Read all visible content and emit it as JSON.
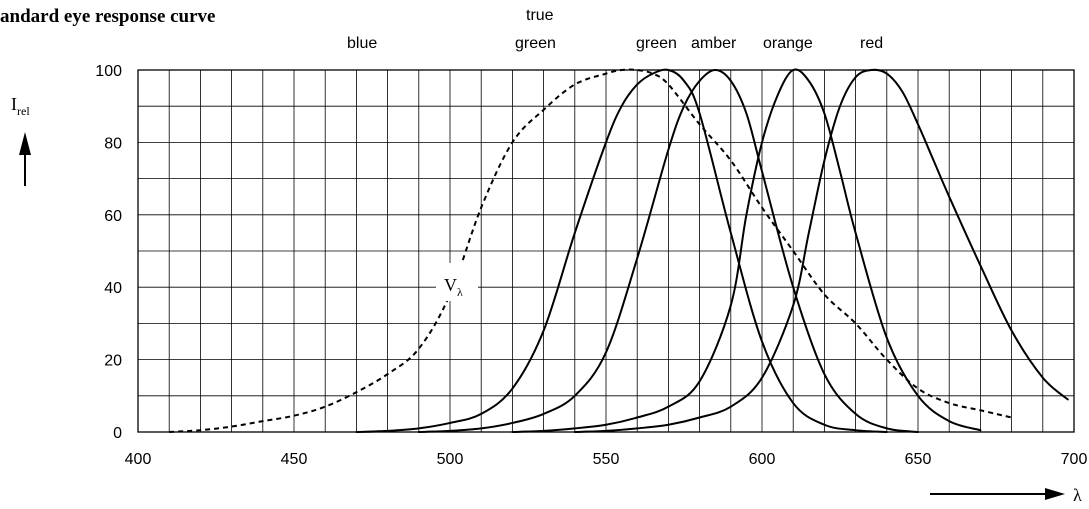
{
  "chart_data": {
    "type": "line",
    "title": "andard eye response curve",
    "ylabel_symbol": "I",
    "ylabel_subscript": "rel",
    "xlabel_symbol": "λ",
    "xlim": [
      400,
      700
    ],
    "ylim": [
      0,
      100
    ],
    "x_ticks": [
      400,
      450,
      500,
      550,
      600,
      650,
      700
    ],
    "y_ticks": [
      0,
      20,
      40,
      60,
      80,
      100
    ],
    "x_minor_step": 10,
    "y_minor_step": 10,
    "grid": true,
    "vlambda_label_symbol": "V",
    "vlambda_label_subscript": "λ",
    "series_labels": [
      "blue",
      "true",
      "green",
      "green",
      "amber",
      "orange",
      "red"
    ],
    "series": [
      {
        "style": "solid",
        "x": [
          470,
          480,
          490,
          500,
          510,
          520,
          530,
          540,
          550,
          555,
          560,
          565,
          570,
          575,
          580,
          590,
          600,
          610,
          620,
          630,
          640
        ],
        "y": [
          0,
          0.3,
          1,
          2.5,
          5,
          12,
          28,
          55,
          80,
          90,
          96,
          99,
          100,
          97,
          88,
          55,
          25,
          8,
          2,
          0.5,
          0
        ]
      },
      {
        "style": "solid",
        "x": [
          490,
          500,
          510,
          520,
          530,
          540,
          550,
          560,
          570,
          575,
          580,
          585,
          590,
          595,
          600,
          610,
          620,
          630,
          640,
          650
        ],
        "y": [
          0,
          0.3,
          1,
          2.5,
          5,
          10,
          22,
          48,
          78,
          90,
          97,
          100,
          97,
          88,
          72,
          40,
          16,
          5,
          1,
          0
        ]
      },
      {
        "style": "solid",
        "x": [
          520,
          530,
          540,
          550,
          560,
          570,
          580,
          590,
          595,
          600,
          605,
          610,
          615,
          620,
          625,
          630,
          640,
          650,
          660,
          670
        ],
        "y": [
          0,
          0.3,
          1,
          2,
          4,
          7,
          14,
          35,
          60,
          80,
          93,
          100,
          97,
          88,
          72,
          55,
          26,
          10,
          3,
          0.5
        ]
      },
      {
        "style": "solid",
        "x": [
          540,
          550,
          560,
          570,
          580,
          590,
          600,
          610,
          615,
          620,
          625,
          630,
          635,
          640,
          645,
          650,
          655,
          660,
          670,
          680,
          690,
          698
        ],
        "y": [
          0,
          0.3,
          1,
          2,
          4,
          7,
          15,
          35,
          55,
          75,
          90,
          98,
          100,
          99,
          94,
          85,
          75,
          65,
          46,
          28,
          15,
          9
        ]
      },
      {
        "style": "dotted",
        "x": [
          410,
          420,
          430,
          440,
          450,
          460,
          470,
          480,
          490,
          500,
          510,
          520,
          530,
          540,
          550,
          555,
          560,
          565,
          570,
          580,
          590,
          600,
          610,
          620,
          630,
          640,
          650,
          660,
          670,
          680
        ],
        "y": [
          0,
          0.5,
          1.5,
          3,
          4.5,
          7,
          11,
          16,
          23,
          38,
          62,
          80,
          89,
          96,
          99,
          100,
          100,
          99,
          96,
          85,
          75,
          62,
          50,
          38,
          30,
          20,
          12,
          8,
          6,
          4
        ]
      }
    ]
  }
}
